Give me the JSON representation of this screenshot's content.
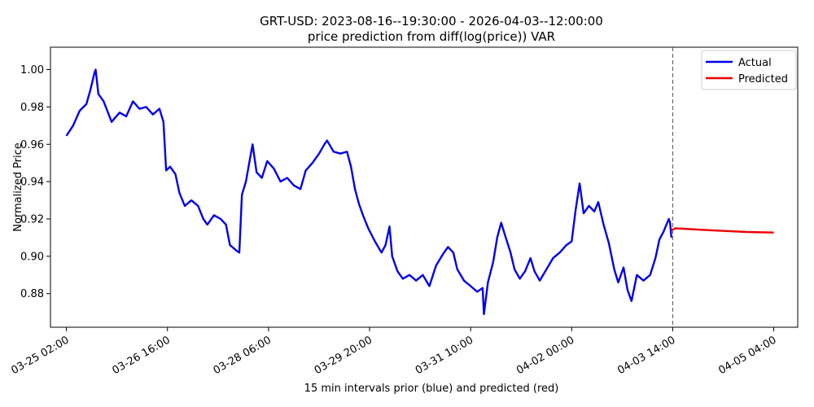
{
  "chart_data": {
    "type": "line",
    "title": "GRT-USD: 2023-08-16--19:30:00 - 2026-04-03--12:00:00",
    "subtitle": "price prediction from diff(log(price)) VAR",
    "xlabel": "15 min intervals prior (blue) and predicted (red)",
    "ylabel": "Normalized Price",
    "ylim": [
      0.862,
      1.012
    ],
    "xlim": [
      "2024-03-24 20:00",
      "2024-04-05 13:00"
    ],
    "grid": false,
    "legend_position": "top-right",
    "x_ticks": [
      "03-25 02:00",
      "03-26 16:00",
      "03-28 06:00",
      "03-29 20:00",
      "03-31 10:00",
      "04-02 00:00",
      "04-03 14:00",
      "04-05 04:00"
    ],
    "y_ticks": [
      "1.00",
      "0.98",
      "0.96",
      "0.94",
      "0.92",
      "0.90",
      "0.88"
    ],
    "forecast_start": "2024-04-03 14:00",
    "series": [
      {
        "name": "Actual",
        "color": "#0000ee",
        "points": [
          [
            "2024-03-25 02:00",
            0.9645
          ],
          [
            "2024-03-25 04:30",
            0.97
          ],
          [
            "2024-03-25 07:00",
            0.978
          ],
          [
            "2024-03-25 09:30",
            0.9815
          ],
          [
            "2024-03-25 11:00",
            0.989
          ],
          [
            "2024-03-25 12:30",
            0.998
          ],
          [
            "2024-03-25 13:00",
            1.0
          ],
          [
            "2024-03-25 14:00",
            0.987
          ],
          [
            "2024-03-25 16:00",
            0.983
          ],
          [
            "2024-03-25 19:00",
            0.972
          ],
          [
            "2024-03-25 22:00",
            0.977
          ],
          [
            "2024-03-26 00:30",
            0.975
          ],
          [
            "2024-03-26 03:00",
            0.983
          ],
          [
            "2024-03-26 05:30",
            0.979
          ],
          [
            "2024-03-26 08:00",
            0.98
          ],
          [
            "2024-03-26 10:30",
            0.976
          ],
          [
            "2024-03-26 13:00",
            0.979
          ],
          [
            "2024-03-26 14:30",
            0.972
          ],
          [
            "2024-03-26 15:30",
            0.946
          ],
          [
            "2024-03-26 17:00",
            0.948
          ],
          [
            "2024-03-26 19:00",
            0.944
          ],
          [
            "2024-03-26 20:30",
            0.934
          ],
          [
            "2024-03-26 22:30",
            0.927
          ],
          [
            "2024-03-27 01:00",
            0.93
          ],
          [
            "2024-03-27 03:30",
            0.927
          ],
          [
            "2024-03-27 05:30",
            0.92
          ],
          [
            "2024-03-27 07:00",
            0.917
          ],
          [
            "2024-03-27 09:30",
            0.922
          ],
          [
            "2024-03-27 12:00",
            0.92
          ],
          [
            "2024-03-27 14:00",
            0.917
          ],
          [
            "2024-03-27 15:30",
            0.906
          ],
          [
            "2024-03-27 18:00",
            0.903
          ],
          [
            "2024-03-27 19:00",
            0.902
          ],
          [
            "2024-03-27 20:00",
            0.933
          ],
          [
            "2024-03-27 21:30",
            0.94
          ],
          [
            "2024-03-27 23:00",
            0.952
          ],
          [
            "2024-03-28 00:00",
            0.96
          ],
          [
            "2024-03-28 01:30",
            0.945
          ],
          [
            "2024-03-28 03:30",
            0.942
          ],
          [
            "2024-03-28 05:30",
            0.951
          ],
          [
            "2024-03-28 08:00",
            0.947
          ],
          [
            "2024-03-28 10:30",
            0.94
          ],
          [
            "2024-03-28 13:00",
            0.942
          ],
          [
            "2024-03-28 15:30",
            0.938
          ],
          [
            "2024-03-28 18:00",
            0.936
          ],
          [
            "2024-03-28 20:00",
            0.946
          ],
          [
            "2024-03-28 22:30",
            0.95
          ],
          [
            "2024-03-29 01:00",
            0.955
          ],
          [
            "2024-03-29 03:00",
            0.96
          ],
          [
            "2024-03-29 04:00",
            0.962
          ],
          [
            "2024-03-29 06:30",
            0.956
          ],
          [
            "2024-03-29 09:00",
            0.955
          ],
          [
            "2024-03-29 11:30",
            0.956
          ],
          [
            "2024-03-29 13:00",
            0.948
          ],
          [
            "2024-03-29 14:30",
            0.936
          ],
          [
            "2024-03-29 16:00",
            0.928
          ],
          [
            "2024-03-29 17:30",
            0.922
          ],
          [
            "2024-03-29 19:30",
            0.915
          ],
          [
            "2024-03-29 22:00",
            0.908
          ],
          [
            "2024-03-30 00:30",
            0.902
          ],
          [
            "2024-03-30 02:00",
            0.906
          ],
          [
            "2024-03-30 03:30",
            0.916
          ],
          [
            "2024-03-30 04:30",
            0.9
          ],
          [
            "2024-03-30 06:30",
            0.892
          ],
          [
            "2024-03-30 08:30",
            0.888
          ],
          [
            "2024-03-30 11:00",
            0.89
          ],
          [
            "2024-03-30 13:30",
            0.887
          ],
          [
            "2024-03-30 16:00",
            0.89
          ],
          [
            "2024-03-30 18:30",
            0.884
          ],
          [
            "2024-03-30 21:00",
            0.895
          ],
          [
            "2024-03-30 23:30",
            0.901
          ],
          [
            "2024-03-31 01:30",
            0.905
          ],
          [
            "2024-03-31 03:30",
            0.902
          ],
          [
            "2024-03-31 05:00",
            0.893
          ],
          [
            "2024-03-31 07:30",
            0.887
          ],
          [
            "2024-03-31 10:00",
            0.884
          ],
          [
            "2024-03-31 12:30",
            0.881
          ],
          [
            "2024-03-31 14:30",
            0.883
          ],
          [
            "2024-03-31 15:00",
            0.869
          ],
          [
            "2024-03-31 16:30",
            0.886
          ],
          [
            "2024-03-31 18:30",
            0.897
          ],
          [
            "2024-03-31 20:00",
            0.91
          ],
          [
            "2024-03-31 21:30",
            0.918
          ],
          [
            "2024-03-31 23:00",
            0.911
          ],
          [
            "2024-04-01 01:00",
            0.902
          ],
          [
            "2024-04-01 02:30",
            0.893
          ],
          [
            "2024-04-01 04:30",
            0.888
          ],
          [
            "2024-04-01 06:30",
            0.892
          ],
          [
            "2024-04-01 08:30",
            0.899
          ],
          [
            "2024-04-01 10:00",
            0.892
          ],
          [
            "2024-04-01 12:00",
            0.887
          ],
          [
            "2024-04-01 14:30",
            0.893
          ],
          [
            "2024-04-01 17:00",
            0.899
          ],
          [
            "2024-04-01 19:30",
            0.902
          ],
          [
            "2024-04-01 22:00",
            0.906
          ],
          [
            "2024-04-02 00:00",
            0.908
          ],
          [
            "2024-04-02 01:30",
            0.925
          ],
          [
            "2024-04-02 03:00",
            0.939
          ],
          [
            "2024-04-02 04:30",
            0.923
          ],
          [
            "2024-04-02 06:30",
            0.927
          ],
          [
            "2024-04-02 08:30",
            0.924
          ],
          [
            "2024-04-02 10:00",
            0.929
          ],
          [
            "2024-04-02 12:00",
            0.917
          ],
          [
            "2024-04-02 14:00",
            0.907
          ],
          [
            "2024-04-02 16:00",
            0.893
          ],
          [
            "2024-04-02 17:30",
            0.886
          ],
          [
            "2024-04-02 19:30",
            0.894
          ],
          [
            "2024-04-02 21:00",
            0.882
          ],
          [
            "2024-04-02 22:30",
            0.876
          ],
          [
            "2024-04-03 00:30",
            0.89
          ],
          [
            "2024-04-03 03:00",
            0.887
          ],
          [
            "2024-04-03 05:30",
            0.89
          ],
          [
            "2024-04-03 07:30",
            0.899
          ],
          [
            "2024-04-03 09:00",
            0.909
          ],
          [
            "2024-04-03 10:30",
            0.913
          ],
          [
            "2024-04-03 12:30",
            0.92
          ],
          [
            "2024-04-03 13:00",
            0.918
          ],
          [
            "2024-04-03 13:30",
            0.91
          ]
        ]
      },
      {
        "name": "Predicted",
        "color": "#ee0000",
        "points": [
          [
            "2024-04-03 13:30",
            0.914
          ],
          [
            "2024-04-03 15:00",
            0.915
          ],
          [
            "2024-04-04 06:00",
            0.9138
          ],
          [
            "2024-04-04 18:00",
            0.913
          ],
          [
            "2024-04-05 04:00",
            0.9127
          ]
        ]
      }
    ]
  }
}
